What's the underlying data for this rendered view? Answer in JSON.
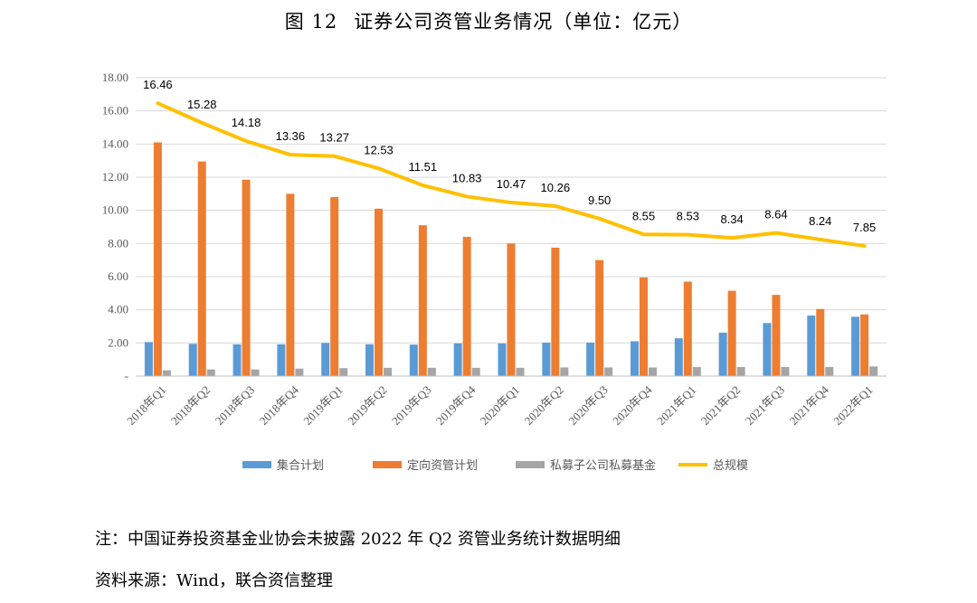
{
  "header": {
    "figure_number": "图 12",
    "title": "证券公司资管业务情况（单位：亿元）"
  },
  "chart_data": {
    "type": "bar",
    "categories": [
      "2018年Q1",
      "2018年Q2",
      "2018年Q3",
      "2018年Q4",
      "2019年Q1",
      "2019年Q2",
      "2019年Q3",
      "2019年Q4",
      "2020年Q1",
      "2020年Q2",
      "2020年Q3",
      "2020年Q4",
      "2021年Q1",
      "2021年Q2",
      "2021年Q3",
      "2021年Q4",
      "2022年Q1"
    ],
    "series": [
      {
        "name": "集合计划",
        "kind": "bar",
        "color": "#5B9BD5",
        "values": [
          2.05,
          1.95,
          1.92,
          1.92,
          2.0,
          1.92,
          1.9,
          1.97,
          1.97,
          2.02,
          2.02,
          2.1,
          2.28,
          2.62,
          3.2,
          3.65,
          3.58
        ]
      },
      {
        "name": "定向资管计划",
        "kind": "bar",
        "color": "#ED7D31",
        "values": [
          14.1,
          12.95,
          11.85,
          11.0,
          10.8,
          10.1,
          9.1,
          8.4,
          8.0,
          7.75,
          7.0,
          5.95,
          5.7,
          5.15,
          4.9,
          4.05,
          3.72
        ]
      },
      {
        "name": "私募子公司私募基金",
        "kind": "bar",
        "color": "#A5A5A5",
        "values": [
          0.35,
          0.4,
          0.4,
          0.45,
          0.48,
          0.5,
          0.5,
          0.5,
          0.5,
          0.52,
          0.52,
          0.52,
          0.55,
          0.55,
          0.55,
          0.55,
          0.58
        ]
      },
      {
        "name": "总规模",
        "kind": "line",
        "color": "#FFC000",
        "values": [
          16.46,
          15.28,
          14.18,
          13.36,
          13.27,
          12.53,
          11.51,
          10.83,
          10.47,
          10.26,
          9.5,
          8.55,
          8.53,
          8.34,
          8.64,
          8.24,
          7.85
        ],
        "labels": [
          "16.46",
          "15.28",
          "14.18",
          "13.36",
          "13.27",
          "12.53",
          "11.51",
          "10.83",
          "10.47",
          "10.26",
          "9.50",
          "8.55",
          "8.53",
          "8.34",
          "8.64",
          "8.24",
          "7.85"
        ]
      }
    ],
    "yticks": [
      "-",
      "2.00",
      "4.00",
      "6.00",
      "8.00",
      "10.00",
      "12.00",
      "14.00",
      "16.00",
      "18.00"
    ],
    "ylim": [
      0,
      18
    ],
    "grid": true,
    "legend": "bottom",
    "xlabel": "",
    "ylabel": ""
  },
  "notes": {
    "note": "注：中国证券投资基金业协会未披露 2022 年 Q2 资管业务统计数据明细",
    "source": "资料来源：Wind，联合资信整理"
  }
}
